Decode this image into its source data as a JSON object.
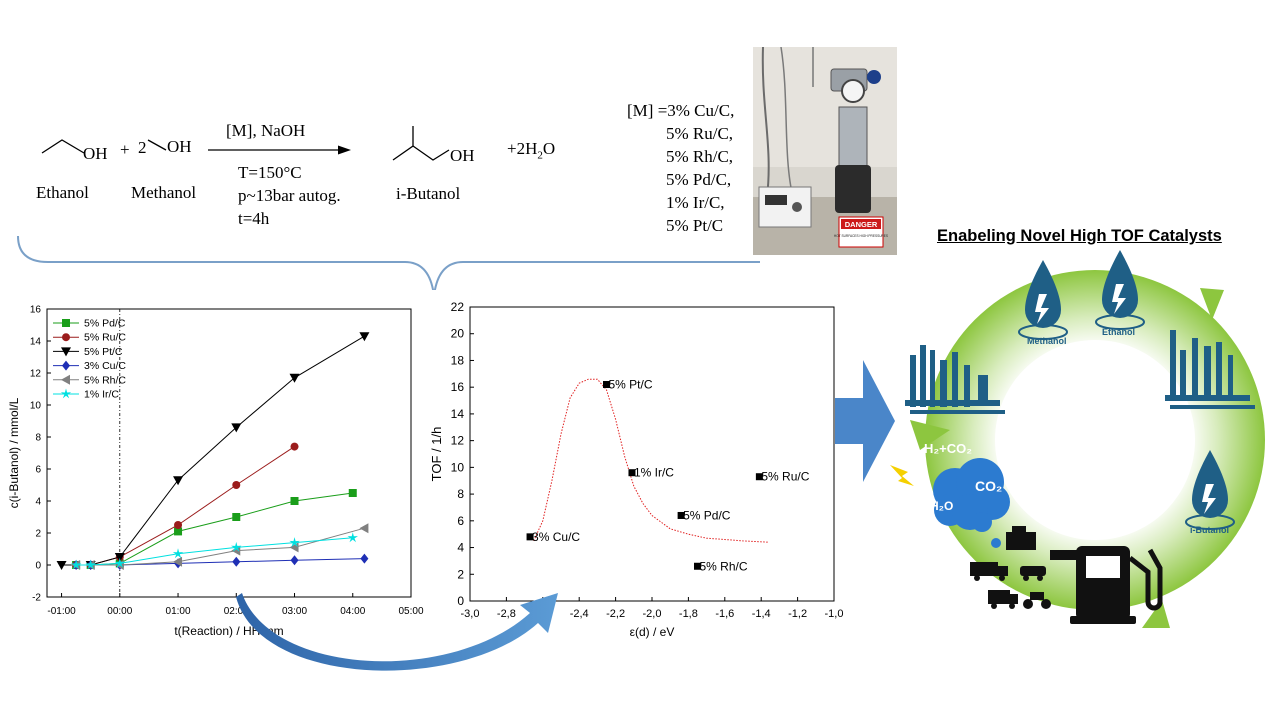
{
  "reaction": {
    "ethanol_label": "Ethanol",
    "methanol_label": "Methanol",
    "oh": "OH",
    "plus": "+",
    "two": "2",
    "arrow_top": "[M], NaOH",
    "conditions": [
      "T=150°C",
      "p~13bar autog.",
      "t=4h"
    ],
    "product_label": "i-Butanol",
    "water_prefix": "+2H",
    "water_sub": "2",
    "water_suffix": "O",
    "catalyst_list": [
      "[M] =3% Cu/C,",
      "5% Ru/C,",
      "5% Rh/C,",
      "5% Pd/C,",
      "1% Ir/C,",
      "5% Pt/C"
    ]
  },
  "photo": {
    "sign_text": "DANGER",
    "sign_sub": "HOT SURFACES HIGH PRESSURES"
  },
  "cycle": {
    "title": "Enabeling Novel High TOF Catalysts",
    "methanol": "Methanol",
    "ethanol": "Ethanol",
    "ibutanol": "i-Butanol",
    "h2co2": "H₂+CO₂",
    "co2": "CO₂",
    "h2o": "H₂O",
    "colors": {
      "arrow": "#8dc63f",
      "drop": "#1f5f86",
      "factory": "#1f5f86",
      "cloud": "#2c7bd0"
    }
  },
  "chart_data": [
    {
      "type": "line",
      "xlabel": "t(Reaction)  /  HH:mm",
      "ylabel": "c(i-Butanol)  /  mmol/L",
      "xlim": [
        -1.25,
        5.0
      ],
      "ylim": [
        -2,
        16
      ],
      "x_ticks": [
        "-01:00",
        "00:00",
        "01:00",
        "02:00",
        "03:00",
        "04:00",
        "05:00"
      ],
      "y_ticks": [
        -2,
        0,
        2,
        4,
        6,
        8,
        10,
        12,
        14,
        16
      ],
      "grid": false,
      "legend": "top-left",
      "series": [
        {
          "name": "5% Pd/C",
          "color": "#1a9e1a",
          "marker": "square",
          "x": [
            -0.75,
            -0.5,
            0.0,
            1.0,
            2.0,
            3.0,
            4.0
          ],
          "y": [
            0,
            0,
            0.1,
            2.1,
            3.0,
            4.0,
            4.5
          ]
        },
        {
          "name": "5% Ru/C",
          "color": "#9b1c1c",
          "marker": "circle",
          "x": [
            -0.75,
            -0.5,
            0.0,
            1.0,
            2.0,
            3.0
          ],
          "y": [
            0,
            0,
            0.5,
            2.5,
            5.0,
            7.4
          ]
        },
        {
          "name": "5% Pt/C",
          "color": "#000000",
          "marker": "triangle-down",
          "x": [
            -1.0,
            -0.5,
            0.0,
            1.0,
            2.0,
            3.0,
            4.2
          ],
          "y": [
            0,
            0,
            0.5,
            5.3,
            8.6,
            11.7,
            14.3
          ]
        },
        {
          "name": "3% Cu/C",
          "color": "#1f2fb5",
          "marker": "diamond",
          "x": [
            -0.75,
            -0.5,
            0.0,
            1.0,
            2.0,
            3.0,
            4.2
          ],
          "y": [
            0,
            0,
            0,
            0.1,
            0.2,
            0.3,
            0.4
          ]
        },
        {
          "name": "5% Rh/C",
          "color": "#808080",
          "marker": "triangle-left",
          "x": [
            -0.75,
            -0.5,
            0.0,
            1.0,
            2.0,
            3.0,
            4.2
          ],
          "y": [
            0,
            0,
            0,
            0.2,
            0.9,
            1.1,
            2.3
          ]
        },
        {
          "name": "1% Ir/C",
          "color": "#00e0e0",
          "marker": "star",
          "x": [
            -0.75,
            -0.5,
            0.0,
            1.0,
            2.0,
            3.0,
            4.0
          ],
          "y": [
            0,
            0,
            0.1,
            0.7,
            1.1,
            1.4,
            1.7
          ]
        }
      ]
    },
    {
      "type": "scatter",
      "xlabel": "ε(d)  /  eV",
      "ylabel": "TOF  /  1/h",
      "xlim": [
        -3.0,
        -1.0
      ],
      "ylim": [
        0,
        22
      ],
      "x_ticks": [
        "-3,0",
        "-2,8",
        "-2,6",
        "-2,4",
        "-2,2",
        "-2,0",
        "-1,8",
        "-1,6",
        "-1,4",
        "-1,2",
        "-1,0"
      ],
      "y_ticks": [
        0,
        2,
        4,
        6,
        8,
        10,
        12,
        14,
        16,
        18,
        20,
        22
      ],
      "grid": false,
      "points": [
        {
          "label": "3% Cu/C",
          "x": -2.67,
          "y": 4.8
        },
        {
          "label": "5% Pt/C",
          "x": -2.25,
          "y": 16.2
        },
        {
          "label": "1% Ir/C",
          "x": -2.11,
          "y": 9.6
        },
        {
          "label": "5% Pd/C",
          "x": -1.84,
          "y": 6.4
        },
        {
          "label": "5% Rh/C",
          "x": -1.75,
          "y": 2.6
        },
        {
          "label": "5% Ru/C",
          "x": -1.41,
          "y": 9.3
        }
      ],
      "fit_curve": {
        "style": "dotted",
        "color": "#e02020",
        "x": [
          -2.65,
          -2.6,
          -2.55,
          -2.5,
          -2.45,
          -2.4,
          -2.35,
          -2.3,
          -2.25,
          -2.2,
          -2.15,
          -2.1,
          -2.05,
          -2.0,
          -1.9,
          -1.8,
          -1.7,
          -1.6,
          -1.5,
          -1.36
        ],
        "y": [
          4.5,
          6.0,
          9.0,
          12.5,
          15.2,
          16.3,
          16.6,
          16.6,
          15.8,
          13.6,
          10.8,
          8.6,
          7.3,
          6.4,
          5.4,
          5.0,
          4.7,
          4.6,
          4.5,
          4.4
        ]
      }
    }
  ]
}
